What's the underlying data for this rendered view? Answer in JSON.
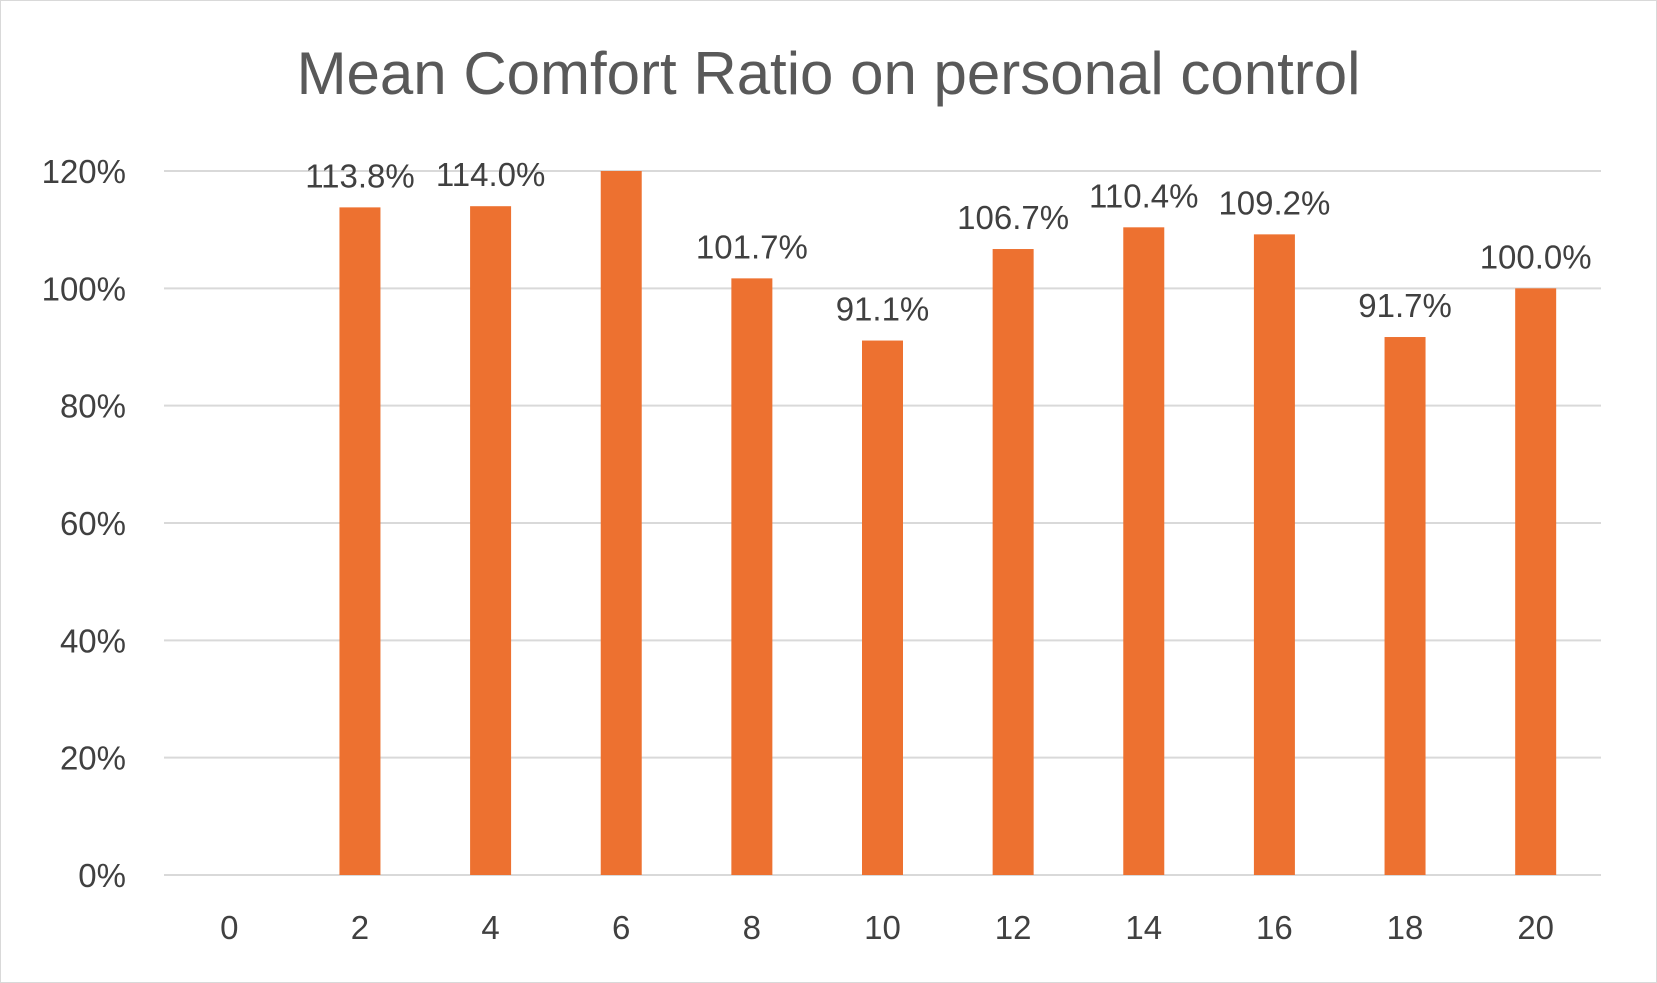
{
  "chart_data": {
    "type": "bar",
    "title": "Mean Comfort Ratio on personal control",
    "xlabel": "",
    "ylabel": "",
    "categories": [
      "0",
      "2",
      "4",
      "6",
      "8",
      "10",
      "12",
      "14",
      "16",
      "18",
      "20"
    ],
    "values": [
      null,
      113.8,
      114.0,
      120.0,
      101.7,
      91.1,
      106.7,
      110.4,
      109.2,
      91.7,
      100.0
    ],
    "data_labels": [
      "",
      "113.8%",
      "114.0%",
      "",
      "101.7%",
      "91.1%",
      "106.7%",
      "110.4%",
      "109.2%",
      "91.7%",
      "100.0%"
    ],
    "ylim": [
      0,
      120
    ],
    "y_ticks": [
      0,
      20,
      40,
      60,
      80,
      100,
      120
    ],
    "y_tick_labels": [
      "0%",
      "20%",
      "40%",
      "60%",
      "80%",
      "100%",
      "120%"
    ],
    "grid": true,
    "legend": "none",
    "colors": {
      "bar": "#ed7130",
      "grid": "#d9d9d9",
      "text": "#404040",
      "title": "#595959"
    }
  }
}
